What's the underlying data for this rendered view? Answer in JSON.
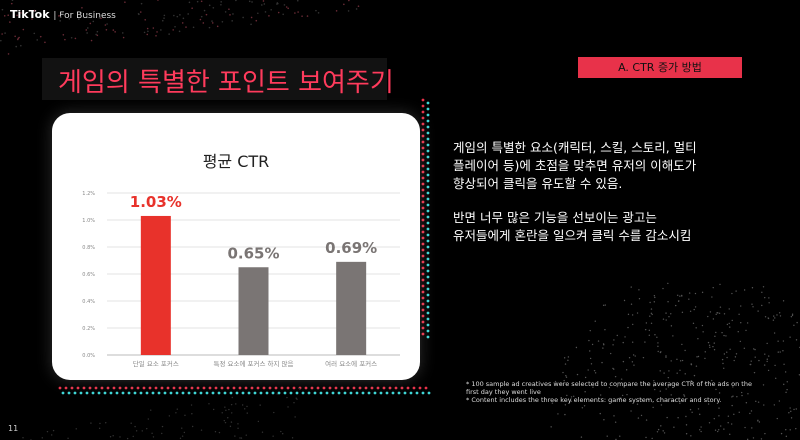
{
  "brand": {
    "logo": "TikTok",
    "sub": "| For Business"
  },
  "title": "게임의 특별한 포인트 보여주기",
  "tag": "A. CTR 증가 방법",
  "chart_data": {
    "type": "bar",
    "title": "평균 CTR",
    "categories": [
      "단일 요소 포커스",
      "특정 요소에 포커스 하지 않음",
      "여러 요소에 포커스"
    ],
    "values": [
      1.03,
      0.65,
      0.69
    ],
    "data_labels": [
      "1.03%",
      "0.65%",
      "0.69%"
    ],
    "yticks": [
      "0.0%",
      "0.2%",
      "0.4%",
      "0.6%",
      "0.8%",
      "1.0%",
      "1.2%"
    ],
    "ylim": [
      0,
      1.2
    ],
    "grid": true,
    "colors": [
      "#e8322b",
      "#7a7574",
      "#7a7574"
    ],
    "label_colors": [
      "#e8322b",
      "#7a7574",
      "#7a7574"
    ]
  },
  "description": {
    "para1": [
      "게임의 특별한 요소(캐릭터, 스킬, 스토리, 멀티",
      "플레이어 등)에 초점을 맞추면 유저의 이해도가",
      "향상되어 클릭을 유도할 수 있음."
    ],
    "para2": [
      "반면 너무 많은 기능을 선보이는 광고는",
      "유저들에게 혼란을 일으켜 클릭 수를 감소시킴"
    ]
  },
  "footnote": [
    "* 100 sample ad creatives were selected to compare the average CTR of the ads on the",
    "first day they went live",
    "* Content includes the three key elements: game system, character and story."
  ],
  "page_number": "11",
  "accent": "#ff3b5c"
}
